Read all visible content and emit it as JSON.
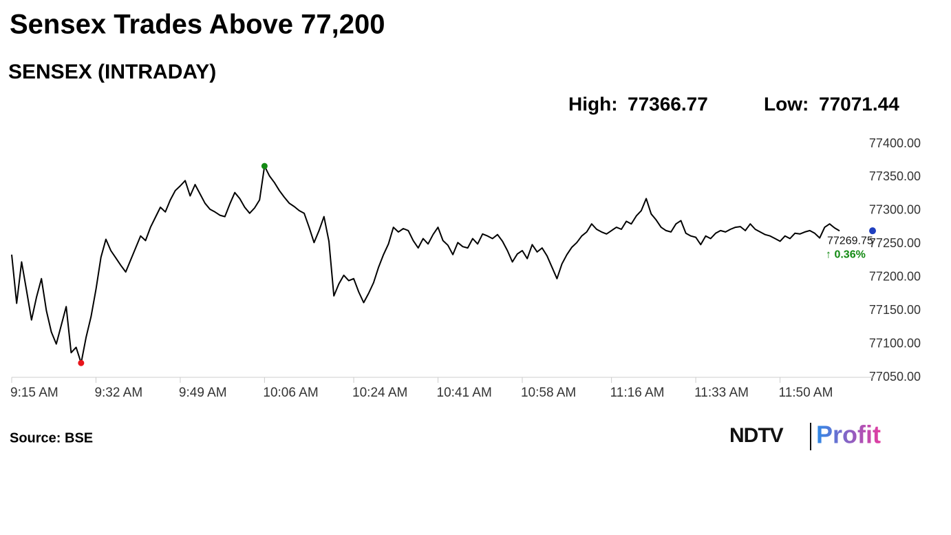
{
  "chart_data": {
    "type": "line",
    "title": "Sensex Trades Above 77,200",
    "subtitle": "SENSEX (INTRADAY)",
    "high_label": "High:",
    "low_label": "Low:",
    "change_label": "↑ 0.36%",
    "source": "Source: BSE",
    "brand": {
      "left": "NDTV",
      "right": "Profit"
    },
    "color": "#000000",
    "high_color": "#138a13",
    "low_color": "#e8141b",
    "last_color": "#1f3fbf",
    "change_color": "#138a13",
    "x": [
      "9:15 AM",
      "9:16 AM",
      "9:17 AM",
      "9:18 AM",
      "9:19 AM",
      "9:20 AM",
      "9:21 AM",
      "9:22 AM",
      "9:23 AM",
      "9:24 AM",
      "9:25 AM",
      "9:26 AM",
      "9:27 AM",
      "9:28 AM",
      "9:29 AM",
      "9:30 AM",
      "9:31 AM",
      "9:32 AM",
      "9:33 AM",
      "9:34 AM",
      "9:35 AM",
      "9:36 AM",
      "9:37 AM",
      "9:38 AM",
      "9:39 AM",
      "9:40 AM",
      "9:41 AM",
      "9:42 AM",
      "9:43 AM",
      "9:44 AM",
      "9:45 AM",
      "9:46 AM",
      "9:47 AM",
      "9:48 AM",
      "9:49 AM",
      "9:50 AM",
      "9:51 AM",
      "9:52 AM",
      "9:53 AM",
      "9:54 AM",
      "9:55 AM",
      "9:56 AM",
      "9:57 AM",
      "9:58 AM",
      "9:59 AM",
      "10:00 AM",
      "10:01 AM",
      "10:02 AM",
      "10:03 AM",
      "10:04 AM",
      "10:05 AM",
      "10:06 AM",
      "10:07 AM",
      "10:08 AM",
      "10:09 AM",
      "10:10 AM",
      "10:11 AM",
      "10:12 AM",
      "10:13 AM",
      "10:14 AM",
      "10:15 AM",
      "10:16 AM",
      "10:17 AM",
      "10:18 AM",
      "10:19 AM",
      "10:20 AM",
      "10:21 AM",
      "10:22 AM",
      "10:23 AM",
      "10:24 AM",
      "10:25 AM",
      "10:26 AM",
      "10:27 AM",
      "10:28 AM",
      "10:29 AM",
      "10:30 AM",
      "10:31 AM",
      "10:32 AM",
      "10:33 AM",
      "10:34 AM",
      "10:35 AM",
      "10:36 AM",
      "10:37 AM",
      "10:38 AM",
      "10:39 AM",
      "10:40 AM",
      "10:41 AM",
      "10:42 AM",
      "10:43 AM",
      "10:44 AM",
      "10:45 AM",
      "10:46 AM",
      "10:47 AM",
      "10:48 AM",
      "10:49 AM",
      "10:50 AM",
      "10:51 AM",
      "10:52 AM",
      "10:53 AM",
      "10:54 AM",
      "10:55 AM",
      "10:56 AM",
      "10:57 AM",
      "10:58 AM",
      "10:59 AM",
      "11:00 AM",
      "11:01 AM",
      "11:02 AM",
      "11:03 AM",
      "11:04 AM",
      "11:05 AM",
      "11:06 AM",
      "11:07 AM",
      "11:08 AM",
      "11:09 AM",
      "11:10 AM",
      "11:11 AM",
      "11:12 AM",
      "11:13 AM",
      "11:14 AM",
      "11:15 AM",
      "11:16 AM",
      "11:17 AM",
      "11:18 AM",
      "11:19 AM",
      "11:20 AM",
      "11:21 AM",
      "11:22 AM",
      "11:23 AM",
      "11:24 AM",
      "11:25 AM",
      "11:26 AM",
      "11:27 AM",
      "11:28 AM",
      "11:29 AM",
      "11:30 AM",
      "11:31 AM",
      "11:32 AM",
      "11:33 AM",
      "11:34 AM",
      "11:35 AM",
      "11:36 AM",
      "11:37 AM",
      "11:38 AM",
      "11:39 AM",
      "11:40 AM",
      "11:41 AM",
      "11:42 AM",
      "11:43 AM",
      "11:44 AM",
      "11:45 AM",
      "11:46 AM",
      "11:47 AM",
      "11:48 AM",
      "11:49 AM",
      "11:50 AM",
      "11:51 AM",
      "11:52 AM",
      "11:53 AM",
      "11:54 AM",
      "11:55 AM",
      "11:56 AM",
      "11:57 AM",
      "11:58 AM",
      "11:59 AM",
      "12:00 PM",
      "12:01 PM",
      "12:02 PM"
    ],
    "values": [
      77234,
      77161,
      77223,
      77180,
      77136,
      77170,
      77198,
      77150,
      77118,
      77100,
      77128,
      77156,
      77087,
      77095,
      77071.44,
      77110,
      77141,
      77182,
      77230,
      77257,
      77240,
      77229,
      77218,
      77208,
      77226,
      77244,
      77262,
      77255,
      77275,
      77290,
      77305,
      77298,
      77316,
      77330,
      77337,
      77345,
      77322,
      77339,
      77325,
      77311,
      77302,
      77298,
      77293,
      77291,
      77310,
      77327,
      77318,
      77305,
      77296,
      77304,
      77316,
      77366.77,
      77352,
      77342,
      77330,
      77320,
      77311,
      77306,
      77300,
      77296,
      77275,
      77252,
      77270,
      77291,
      77254,
      77172,
      77190,
      77203,
      77195,
      77198,
      77178,
      77162,
      77176,
      77192,
      77215,
      77234,
      77250,
      77275,
      77268,
      77273,
      77270,
      77255,
      77244,
      77258,
      77250,
      77264,
      77275,
      77255,
      77248,
      77234,
      77252,
      77246,
      77244,
      77258,
      77250,
      77265,
      77262,
      77258,
      77264,
      77254,
      77240,
      77223,
      77235,
      77240,
      77228,
      77249,
      77238,
      77244,
      77232,
      77215,
      77198,
      77220,
      77234,
      77245,
      77252,
      77262,
      77268,
      77280,
      77272,
      77268,
      77265,
      77270,
      77275,
      77272,
      77284,
      77280,
      77292,
      77300,
      77318,
      77295,
      77286,
      77275,
      77270,
      77268,
      77280,
      77285,
      77266,
      77262,
      77260,
      77249,
      77262,
      77258,
      77266,
      77270,
      77268,
      77272,
      77275,
      77276,
      77270,
      77280,
      77272,
      77268,
      77264,
      77262,
      77258,
      77254,
      77262,
      77258,
      77266,
      77265,
      77268,
      77270,
      77266,
      77259,
      77275,
      77280,
      77274,
      77269.75
    ],
    "xticks": [
      "9:15 AM",
      "9:32 AM",
      "9:49 AM",
      "10:06 AM",
      "10:24 AM",
      "10:41 AM",
      "10:58 AM",
      "11:16 AM",
      "11:33 AM",
      "11:50 AM"
    ],
    "ylim": [
      77050,
      77400
    ],
    "yticks": [
      {
        "value": 77050,
        "label": "77050.00"
      },
      {
        "value": 77100,
        "label": "77100.00"
      },
      {
        "value": 77150,
        "label": "77150.00"
      },
      {
        "value": 77200,
        "label": "77200.00"
      },
      {
        "value": 77250,
        "label": "77250.00"
      },
      {
        "value": 77300,
        "label": "77300.00"
      },
      {
        "value": 77350,
        "label": "77350.00"
      },
      {
        "value": 77400,
        "label": "77400.00"
      }
    ]
  }
}
